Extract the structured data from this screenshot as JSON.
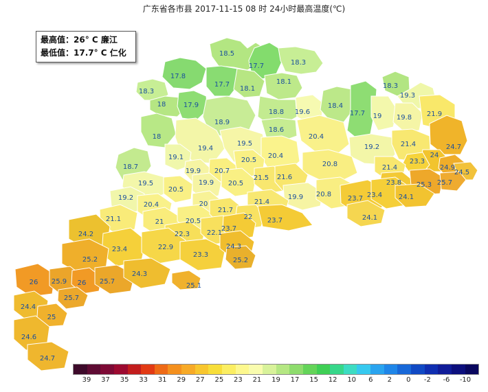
{
  "title": "广东省各市县 2017-11-15 08 时 24小时最高温度(℃)",
  "info": {
    "max_line": "最高值：26° C 廉江",
    "min_line": "最低值：17.7° C 仁化"
  },
  "legend": {
    "colors": [
      "#3d0a2a",
      "#5e0b33",
      "#7d0a35",
      "#9c0a30",
      "#c21d1d",
      "#e23a14",
      "#ee6a16",
      "#f4901e",
      "#f7aa27",
      "#f8c62e",
      "#f7de3a",
      "#fbee62",
      "#fdf88e",
      "#f9fcae",
      "#d8f29a",
      "#b5e783",
      "#8edc6d",
      "#64d459",
      "#3fcf55",
      "#37d78a",
      "#3ddcc2",
      "#37c9ef",
      "#2aa4ef",
      "#1f86e8",
      "#1868d8",
      "#1049c4",
      "#0f2eb0",
      "#101c98",
      "#0c0f7d",
      "#09075e"
    ],
    "labels": [
      "39",
      "37",
      "35",
      "33",
      "31",
      "29",
      "27",
      "25",
      "23",
      "21",
      "19",
      "17",
      "15",
      "12",
      "10",
      "6",
      "2",
      "0",
      "-2",
      "-6",
      "-10"
    ]
  },
  "stations": [
    {
      "v": "18.5",
      "c": "#b3e682"
    },
    {
      "v": "17.7",
      "c": "#83dc6d"
    },
    {
      "v": "18.3",
      "c": "#c7ee95"
    },
    {
      "v": "17.8",
      "c": "#86da70"
    },
    {
      "v": "17.7",
      "c": "#89dc72"
    },
    {
      "v": "18.1",
      "c": "#b7e683"
    },
    {
      "v": "18.1",
      "c": "#bde98a"
    },
    {
      "v": "18.3",
      "c": "#b2e582"
    },
    {
      "v": "19.3",
      "c": "#eff7a9"
    },
    {
      "v": "18.3",
      "c": "#c7ee95"
    },
    {
      "v": "18",
      "c": "#b5e683"
    },
    {
      "v": "17.9",
      "c": "#8edd73"
    },
    {
      "v": "18.9",
      "c": "#c8ec96"
    },
    {
      "v": "18.8",
      "c": "#c3eb90"
    },
    {
      "v": "19.6",
      "c": "#f6fab1"
    },
    {
      "v": "18.4",
      "c": "#bce889"
    },
    {
      "v": "17.7",
      "c": "#8edd73"
    },
    {
      "v": "19",
      "c": "#f3f8ac"
    },
    {
      "v": "19.8",
      "c": "#f5f5a6"
    },
    {
      "v": "21.9",
      "c": "#f9e86a"
    },
    {
      "v": "18.6",
      "c": "#c6ec92"
    },
    {
      "v": "18",
      "c": "#b8e886"
    },
    {
      "v": "19.4",
      "c": "#f3f6a8"
    },
    {
      "v": "19.5",
      "c": "#f6f6a7"
    },
    {
      "v": "20.4",
      "c": "#faf38c"
    },
    {
      "v": "20.4",
      "c": "#f9f18a"
    },
    {
      "v": "19.2",
      "c": "#f3f6a8"
    },
    {
      "v": "21.4",
      "c": "#f8e871"
    },
    {
      "v": "24.7",
      "c": "#f0b42a"
    },
    {
      "v": "24",
      "c": "#f2c42e"
    },
    {
      "v": "23.3",
      "c": "#f6d33a"
    },
    {
      "v": "24.9",
      "c": "#efad2a"
    },
    {
      "v": "24.5",
      "c": "#f2c23a"
    },
    {
      "v": "18.7",
      "c": "#c3ea8f"
    },
    {
      "v": "19.1",
      "c": "#f0f7ab"
    },
    {
      "v": "19.9",
      "c": "#f6f4a3"
    },
    {
      "v": "20.7",
      "c": "#faef80"
    },
    {
      "v": "20.5",
      "c": "#f9f084"
    },
    {
      "v": "20.8",
      "c": "#f9ee82"
    },
    {
      "v": "21.4",
      "c": "#f8e76e"
    },
    {
      "v": "23.8",
      "c": "#f3c935"
    },
    {
      "v": "25.3",
      "c": "#eea82a"
    },
    {
      "v": "25.7",
      "c": "#efab30"
    },
    {
      "v": "19.5",
      "c": "#f3f7aa"
    },
    {
      "v": "20.5",
      "c": "#f9f085"
    },
    {
      "v": "19.9",
      "c": "#f6f4a3"
    },
    {
      "v": "20.5",
      "c": "#f9f084"
    },
    {
      "v": "21.5",
      "c": "#f8e76f"
    },
    {
      "v": "21.6",
      "c": "#f8e66c"
    },
    {
      "v": "19.2",
      "c": "#f1f6aa"
    },
    {
      "v": "20.4",
      "c": "#f9f18a"
    },
    {
      "v": "20",
      "c": "#f8f297"
    },
    {
      "v": "19.9",
      "c": "#f6f4a3"
    },
    {
      "v": "20.8",
      "c": "#f9ee82"
    },
    {
      "v": "23.7",
      "c": "#f4cb36"
    },
    {
      "v": "23.4",
      "c": "#f5cf38"
    },
    {
      "v": "24.1",
      "c": "#f2c330"
    },
    {
      "v": "21.1",
      "c": "#f9eb79"
    },
    {
      "v": "21",
      "c": "#f9ec7b"
    },
    {
      "v": "20.5",
      "c": "#f9f085"
    },
    {
      "v": "21.7",
      "c": "#f8e66c"
    },
    {
      "v": "21.4",
      "c": "#f8e872"
    },
    {
      "v": "22",
      "c": "#f8e262"
    },
    {
      "v": "24.1",
      "c": "#f5d650"
    },
    {
      "v": "24.2",
      "c": "#ecc12f"
    },
    {
      "v": "22.3",
      "c": "#f7df59"
    },
    {
      "v": "22.1",
      "c": "#f8e05d"
    },
    {
      "v": "23.7",
      "c": "#f4cb36"
    },
    {
      "v": "23.7",
      "c": "#f4cb36"
    },
    {
      "v": "23.4",
      "c": "#f5d03a"
    },
    {
      "v": "22.9",
      "c": "#f6d748"
    },
    {
      "v": "25.2",
      "c": "#efaf2b"
    },
    {
      "v": "23.3",
      "c": "#f5d03c"
    },
    {
      "v": "24.3",
      "c": "#f0bd2e"
    },
    {
      "v": "25.2",
      "c": "#e9b02c"
    },
    {
      "v": "26",
      "c": "#f19a25"
    },
    {
      "v": "25.9",
      "c": "#eba52a"
    },
    {
      "v": "26",
      "c": "#f19a25"
    },
    {
      "v": "25.7",
      "c": "#eba72a"
    },
    {
      "v": "24.3",
      "c": "#efbd2f"
    },
    {
      "v": "25.1",
      "c": "#f0b12d"
    },
    {
      "v": "24.4",
      "c": "#efbb2f"
    },
    {
      "v": "25.7",
      "c": "#eca82b"
    },
    {
      "v": "25",
      "c": "#f0b12c"
    },
    {
      "v": "24.6",
      "c": "#efb82e"
    },
    {
      "v": "24.7",
      "c": "#efb62e"
    }
  ]
}
